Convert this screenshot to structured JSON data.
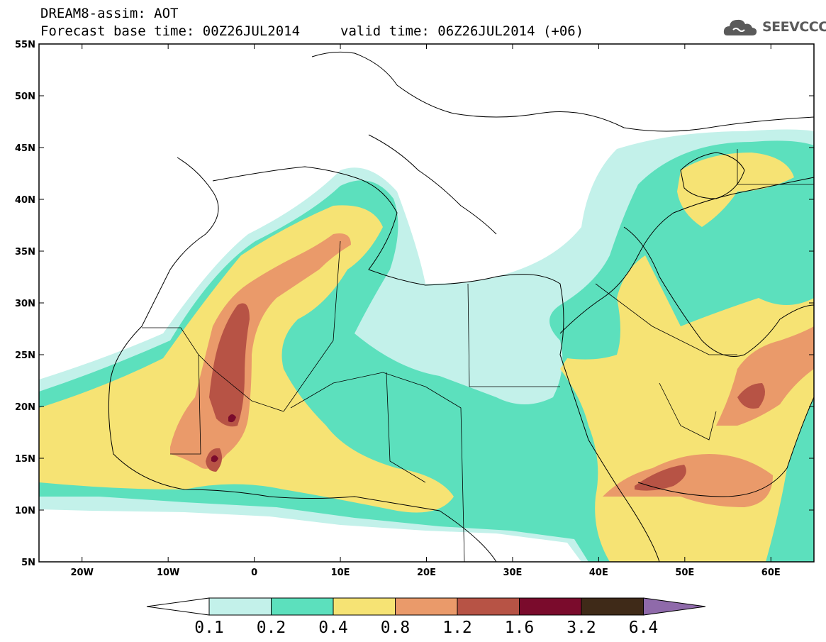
{
  "header": {
    "title": "DREAM8-assim: AOT",
    "base_time": "Forecast base time: 00Z26JUL2014",
    "valid_time": "valid time: 06Z26JUL2014 (+06)",
    "logo_text": "SEEVCCC"
  },
  "map": {
    "lon_range": [
      -25,
      65
    ],
    "lat_range": [
      5,
      55
    ],
    "lat_ticks": [
      "55N",
      "50N",
      "45N",
      "40N",
      "35N",
      "30N",
      "25N",
      "20N",
      "15N",
      "10N",
      "5N"
    ],
    "lon_ticks": [
      "20W",
      "10W",
      "0",
      "10E",
      "20E",
      "30E",
      "40E",
      "50E",
      "60E"
    ],
    "projection": "lat-lon",
    "variable": "AOT",
    "background_color": "#ffffff"
  },
  "colorbar": {
    "levels": [
      "0.1",
      "0.2",
      "0.4",
      "0.8",
      "1.2",
      "1.6",
      "3.2",
      "6.4"
    ],
    "colors": [
      "#c3f1ea",
      "#5ce0bd",
      "#f6e374",
      "#ea9a6a",
      "#b75345",
      "#7a0b2c",
      "#3f2a18",
      "#8f6aaa"
    ],
    "under_color": "#ffffff"
  }
}
